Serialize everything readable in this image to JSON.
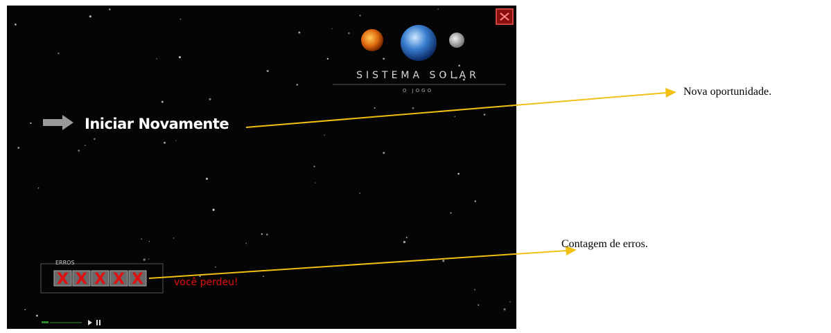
{
  "game": {
    "logo": {
      "title": "SISTEMA SOLAR",
      "subtitle": "O JOGO"
    },
    "menu": {
      "restart": "Iniciar Novamente"
    },
    "errors": {
      "label": "ERROS",
      "marks": [
        "X",
        "X",
        "X",
        "X",
        "X"
      ],
      "message": "você perdeu!"
    }
  },
  "annotations": [
    {
      "text": "Nova oportunidade."
    },
    {
      "text": "Contagem de erros."
    }
  ]
}
